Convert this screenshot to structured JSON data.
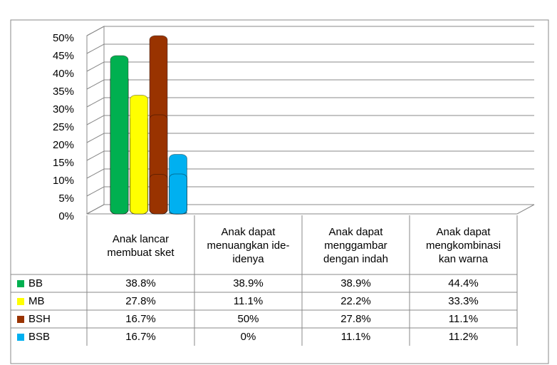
{
  "chart_data": {
    "type": "bar",
    "categories": [
      "Anak lancar membuat sket",
      "Anak dapat menuangkan ide-idenya",
      "Anak dapat menggambar dengan indah",
      "Anak dapat mengkombinasi kan warna"
    ],
    "series": [
      {
        "name": "BB",
        "color": "#00b050",
        "values": [
          38.8,
          38.9,
          38.9,
          44.4
        ],
        "value_labels": [
          "38.8%",
          "38.9%",
          "38.9%",
          "44.4%"
        ]
      },
      {
        "name": "MB",
        "color": "#ffff00",
        "values": [
          27.8,
          11.1,
          22.2,
          33.3
        ],
        "value_labels": [
          "27.8%",
          "11.1%",
          "22.2%",
          "33.3%"
        ]
      },
      {
        "name": "BSH",
        "color": "#993300",
        "values": [
          16.7,
          50,
          27.8,
          11.1
        ],
        "value_labels": [
          "16.7%",
          "50%",
          "27.8%",
          "11.1%"
        ]
      },
      {
        "name": "BSB",
        "color": "#00b0f0",
        "values": [
          16.7,
          0,
          11.1,
          11.2
        ],
        "value_labels": [
          "16.7%",
          "0%",
          "11.1%",
          "11.2%"
        ]
      }
    ],
    "ylim": [
      0,
      50
    ],
    "yticks": [
      {
        "value": 0,
        "label": "0%"
      },
      {
        "value": 5,
        "label": "5%"
      },
      {
        "value": 10,
        "label": "10%"
      },
      {
        "value": 15,
        "label": "15%"
      },
      {
        "value": 20,
        "label": "20%"
      },
      {
        "value": 25,
        "label": "25%"
      },
      {
        "value": 30,
        "label": "30%"
      },
      {
        "value": 35,
        "label": "35%"
      },
      {
        "value": 40,
        "label": "40%"
      },
      {
        "value": 45,
        "label": "45%"
      },
      {
        "value": 50,
        "label": "50%"
      }
    ],
    "grid": true
  }
}
